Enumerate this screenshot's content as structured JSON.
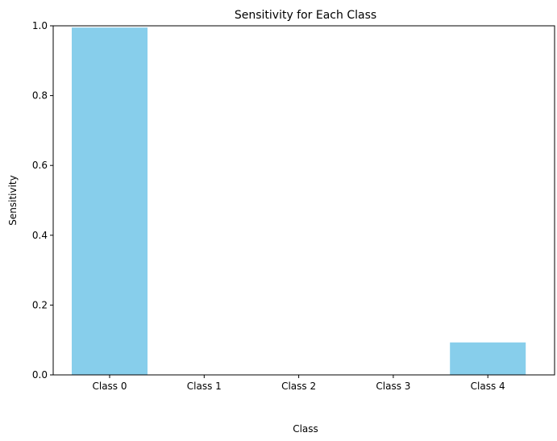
{
  "chart_data": {
    "type": "bar",
    "title": "Sensitivity for Each Class",
    "xlabel": "Class",
    "ylabel": "Sensitivity",
    "categories": [
      "Class 0",
      "Class 1",
      "Class 2",
      "Class 3",
      "Class 4"
    ],
    "values": [
      0.995,
      0.0,
      0.0,
      0.0,
      0.093
    ],
    "ylim": [
      0,
      1
    ],
    "yticks": [
      "0.0",
      "0.2",
      "0.4",
      "0.6",
      "0.8",
      "1.0"
    ],
    "grid": false,
    "bar_color": "#87ceeb"
  }
}
